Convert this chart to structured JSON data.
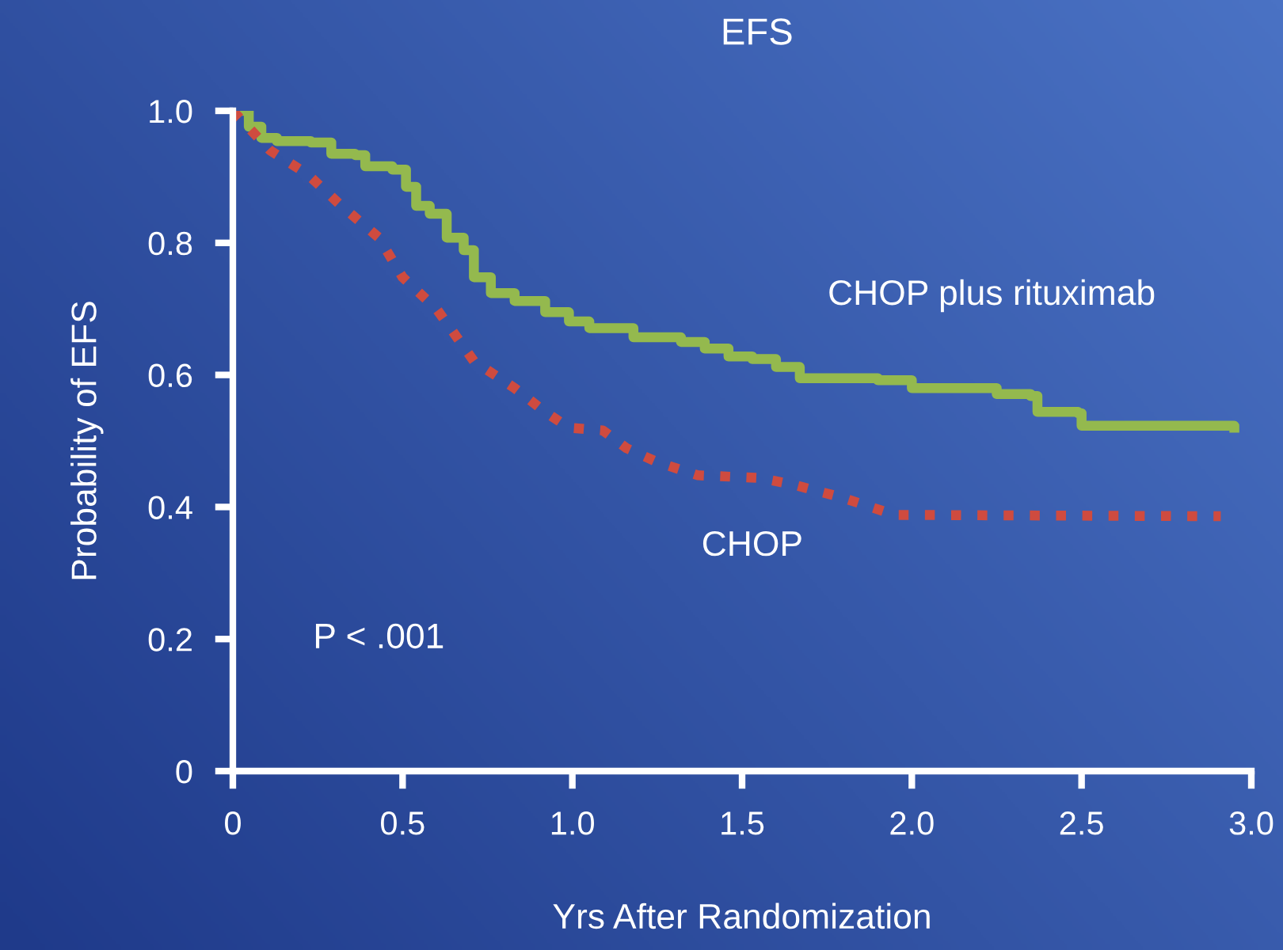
{
  "chart_data": {
    "type": "line",
    "title": "EFS",
    "xlabel": "Yrs After Randomization",
    "ylabel": "Probability of EFS",
    "xlim": [
      0,
      3.0
    ],
    "ylim": [
      0,
      1.0
    ],
    "xticks": [
      0,
      {
        "value": 0.5,
        "label": "0.5"
      },
      {
        "value": 1.0,
        "label": "1.0"
      },
      {
        "value": 1.5,
        "label": "1.5"
      },
      {
        "value": 2.0,
        "label": "2.0"
      },
      {
        "value": 2.5,
        "label": "2.5"
      },
      {
        "value": 3.0,
        "label": "3.0"
      }
    ],
    "yticks": [
      0,
      {
        "value": 0.2,
        "label": "0.2"
      },
      {
        "value": 0.4,
        "label": "0.4"
      },
      {
        "value": 0.6,
        "label": "0.6"
      },
      {
        "value": 0.8,
        "label": "0.8"
      },
      {
        "value": 1.0,
        "label": "1.0"
      }
    ],
    "grid": false,
    "legend": false,
    "annotations": [
      "P < .001"
    ],
    "series": [
      {
        "name": "CHOP plus rituximab",
        "type": "step",
        "color": "#94b94e",
        "line_style": "solid",
        "x": [
          0,
          0.047,
          0.084,
          0.13,
          0.23,
          0.29,
          0.36,
          0.39,
          0.47,
          0.51,
          0.54,
          0.58,
          0.63,
          0.68,
          0.71,
          0.76,
          0.83,
          0.92,
          0.99,
          1.05,
          1.13,
          1.18,
          1.32,
          1.39,
          1.46,
          1.53,
          1.6,
          1.67,
          1.9,
          2.0,
          2.18,
          2.25,
          2.35,
          2.37,
          2.49,
          2.5,
          2.95
        ],
        "values": [
          1.0,
          0.976,
          0.959,
          0.954,
          0.952,
          0.935,
          0.933,
          0.916,
          0.911,
          0.885,
          0.856,
          0.844,
          0.808,
          0.789,
          0.748,
          0.724,
          0.712,
          0.695,
          0.681,
          0.671,
          0.671,
          0.657,
          0.65,
          0.64,
          0.628,
          0.624,
          0.612,
          0.595,
          0.592,
          0.58,
          0.58,
          0.571,
          0.568,
          0.544,
          0.542,
          0.523,
          0.52
        ]
      },
      {
        "name": "CHOP",
        "color": "#cf4b3f",
        "line_style": "dotted",
        "x": [
          0,
          0.11,
          0.22,
          0.32,
          0.43,
          0.5,
          0.6,
          0.71,
          0.83,
          0.92,
          0.99,
          1.09,
          1.16,
          1.25,
          1.37,
          1.55,
          1.65,
          1.79,
          1.95,
          2.91
        ],
        "values": [
          1.0,
          0.94,
          0.904,
          0.856,
          0.808,
          0.748,
          0.7,
          0.621,
          0.58,
          0.544,
          0.52,
          0.516,
          0.489,
          0.468,
          0.448,
          0.444,
          0.434,
          0.415,
          0.388,
          0.386
        ]
      }
    ]
  }
}
